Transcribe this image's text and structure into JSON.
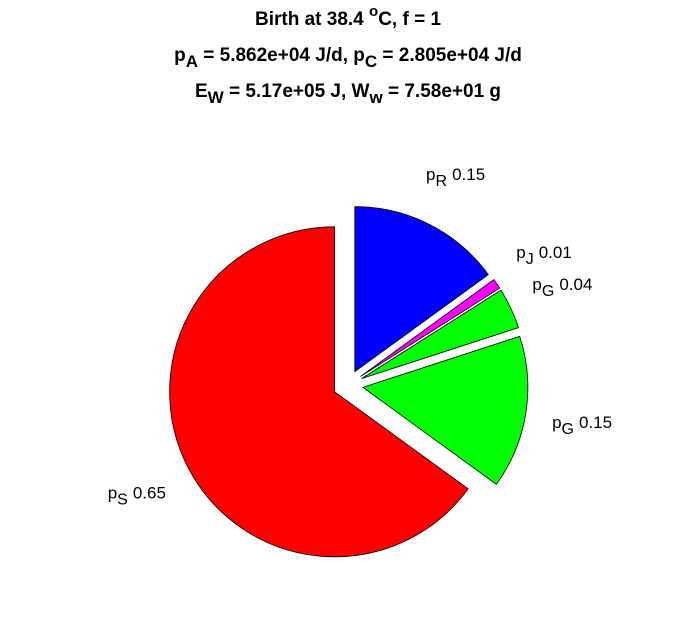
{
  "chart_data": {
    "type": "pie",
    "title": [
      [
        {
          "text": "Birth at 38.4 "
        },
        {
          "superscript": "o"
        },
        {
          "text": "C, f = 1"
        }
      ],
      [
        {
          "text": "p"
        },
        {
          "subscript": "A"
        },
        {
          "text": " = 5.862e+04 J/d, p"
        },
        {
          "subscript": "C"
        },
        {
          "text": " = 2.805e+04 J/d"
        }
      ],
      [
        {
          "text": "E"
        },
        {
          "subscript": "W"
        },
        {
          "text": " = 5.17e+05 J, W"
        },
        {
          "subscript": "w"
        },
        {
          "text": " = 7.58e+01 g"
        }
      ]
    ],
    "categories": [
      {
        "symbol": "p",
        "subscript": "R"
      },
      {
        "symbol": "p",
        "subscript": "J"
      },
      {
        "symbol": "p",
        "subscript": "G"
      },
      {
        "symbol": "p",
        "subscript": "G"
      },
      {
        "symbol": "p",
        "subscript": "S"
      }
    ],
    "values": [
      0.15,
      0.01,
      0.04,
      0.15,
      0.65
    ],
    "colors": [
      "#0000ff",
      "#ff00ff",
      "#00ff00",
      "#00ff00",
      "#ff0000"
    ],
    "exploded": true
  }
}
